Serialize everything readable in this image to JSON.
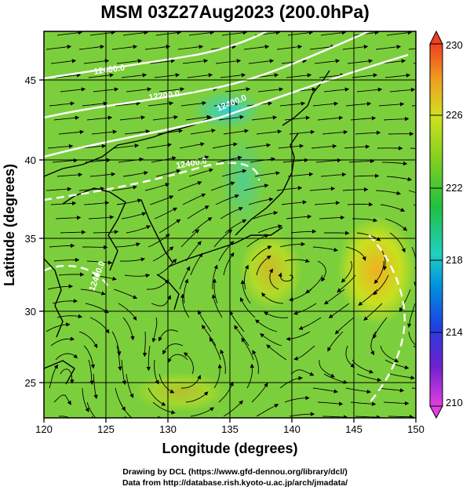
{
  "title": "MSM 03Z27Aug2023 (200.0hPa)",
  "credits": [
    "Drawing by DCL (https://www.gfd-dennou.org/library/dcl/)",
    "Data from http://database.rish.kyoto-u.ac.jp/arch/jmadata/"
  ],
  "chart_data": {
    "type": "heatmap",
    "xlabel": "Longitude (degrees)",
    "ylabel": "Latitude  (degrees)",
    "xlim": [
      120,
      150
    ],
    "ylim": [
      22.5,
      48
    ],
    "xticks": [
      120,
      125,
      130,
      135,
      140,
      145,
      150
    ],
    "yticks": [
      25,
      30,
      35,
      40,
      45
    ],
    "grid": true,
    "colorbar": {
      "min": 210,
      "max": 230,
      "ticks": [
        210,
        214,
        218,
        222,
        226,
        230
      ],
      "stops": [
        "#e040e0",
        "#7020d0",
        "#2040e0",
        "#0090e0",
        "#20d0c0",
        "#20c040",
        "#80d020",
        "#d0e020",
        "#f0a020",
        "#f04020"
      ]
    },
    "contour_labels": [
      "12400.0",
      "12200.0",
      "12400.0",
      "12400.0",
      "12400.0"
    ],
    "overlays": [
      "coastlines",
      "streamlines",
      "geopotential height contours"
    ]
  }
}
